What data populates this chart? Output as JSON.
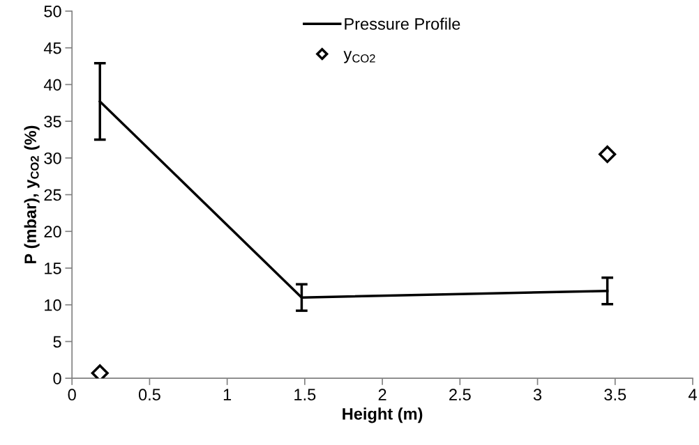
{
  "chart_data": {
    "type": "line",
    "xlabel": "Height (m)",
    "ylabel": "P (mbar), y$_{CO2}$ (%)",
    "xlim": [
      0,
      4
    ],
    "xticks": [
      0,
      0.5,
      1,
      1.5,
      2,
      2.5,
      3,
      3.5,
      4
    ],
    "ylim": [
      0,
      50
    ],
    "yticks": [
      0,
      5,
      10,
      15,
      20,
      25,
      30,
      35,
      40,
      45,
      50
    ],
    "series": [
      {
        "name": "Pressure Profile",
        "color": "#000000",
        "x": [
          0.18,
          1.48,
          3.45
        ],
        "values": [
          37.7,
          11.0,
          11.9
        ],
        "errors": [
          5.2,
          1.8,
          1.8
        ],
        "marker": "none",
        "line_style": "solid"
      },
      {
        "name": "y$_{CO2}$",
        "type": "scatter",
        "color": "#000000",
        "x": [
          0.18,
          3.45
        ],
        "values": [
          0.7,
          30.5
        ],
        "marker": "diamond"
      }
    ],
    "grid": false,
    "legend": "top"
  }
}
